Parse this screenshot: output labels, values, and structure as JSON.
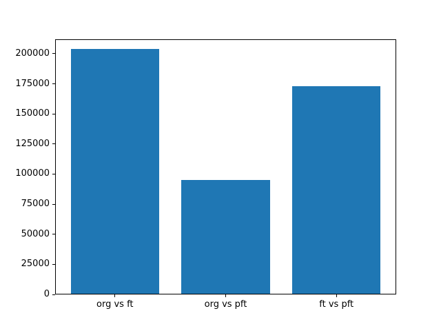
{
  "chart_data": {
    "type": "bar",
    "categories": [
      "org vs ft",
      "org vs pft",
      "ft vs pft"
    ],
    "values": [
      204000,
      95000,
      173000
    ],
    "title": "",
    "xlabel": "",
    "ylabel": "",
    "ylim": [
      0,
      212000
    ],
    "yticks": [
      0,
      25000,
      50000,
      75000,
      100000,
      125000,
      150000,
      175000,
      200000
    ],
    "ytick_labels": [
      "0",
      "25000",
      "50000",
      "75000",
      "100000",
      "125000",
      "150000",
      "175000",
      "200000"
    ],
    "bar_color": "#1f77b4",
    "grid": false,
    "legend_position": "none"
  }
}
